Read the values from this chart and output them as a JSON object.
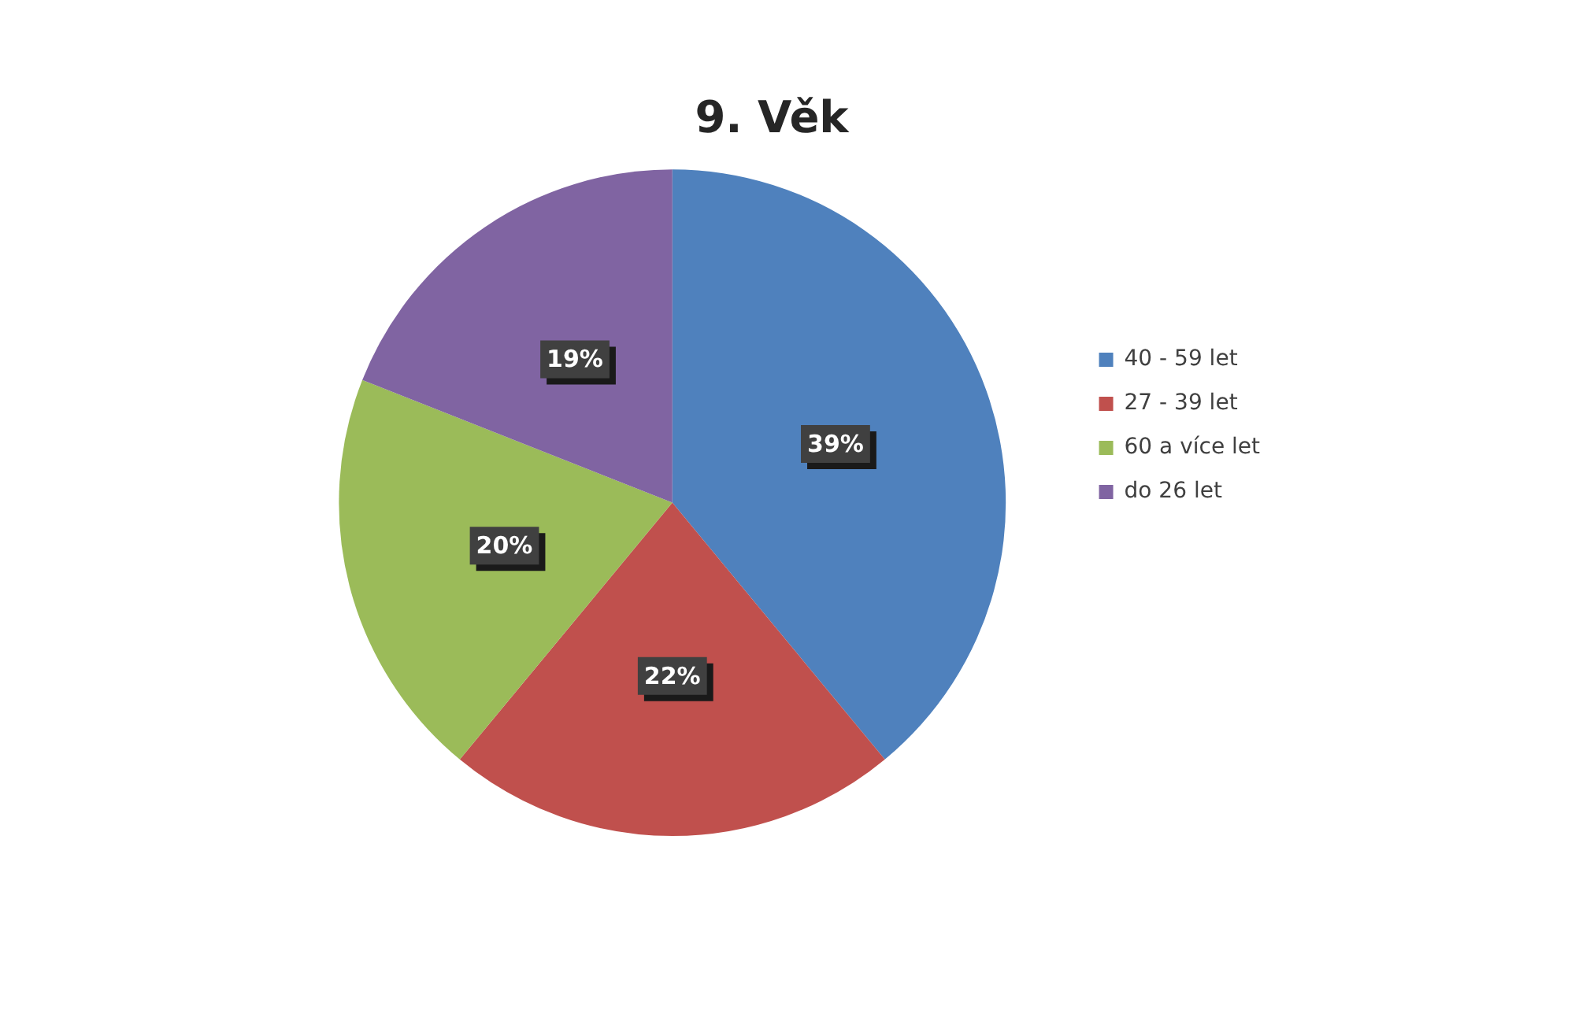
{
  "chart_data": {
    "type": "pie",
    "title": "9. Věk",
    "categories": [
      "40 - 59 let",
      "27 - 39 let",
      "60 a více let",
      "do 26 let"
    ],
    "values": [
      39,
      22,
      20,
      19
    ],
    "value_labels": [
      "39%",
      "22%",
      "20%",
      "19%"
    ],
    "colors": [
      "#4f81bd",
      "#c0504d",
      "#9bbb59",
      "#8064a2"
    ],
    "legend": "right"
  }
}
